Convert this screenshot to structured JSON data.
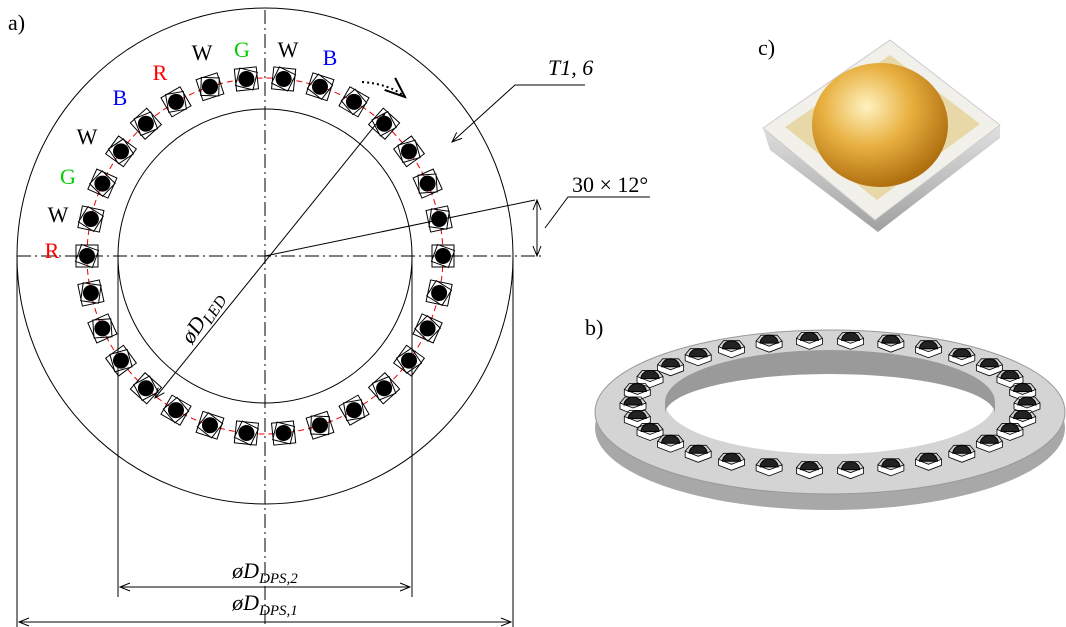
{
  "panels": {
    "a": "a)",
    "b": "b)",
    "c": "c)"
  },
  "annotations": {
    "thickness": "T1, 6",
    "pitch": "30 × 12°",
    "d_led": {
      "symbol": "øD",
      "subscript": "LED"
    },
    "d_dps2": {
      "symbol": "øD",
      "subscript": "DPS,2"
    },
    "d_dps1": {
      "symbol": "øD",
      "subscript": "DPS,1"
    }
  },
  "led_labels": [
    {
      "text": "R",
      "color": "#ff0000"
    },
    {
      "text": "W",
      "color": "#000000"
    },
    {
      "text": "G",
      "color": "#00cc00"
    },
    {
      "text": "W",
      "color": "#000000"
    },
    {
      "text": "B",
      "color": "#0000ff"
    },
    {
      "text": "R",
      "color": "#ff0000"
    },
    {
      "text": "W",
      "color": "#000000"
    },
    {
      "text": "G",
      "color": "#00cc00"
    },
    {
      "text": "W",
      "color": "#000000"
    },
    {
      "text": "B",
      "color": "#0000ff"
    }
  ]
}
